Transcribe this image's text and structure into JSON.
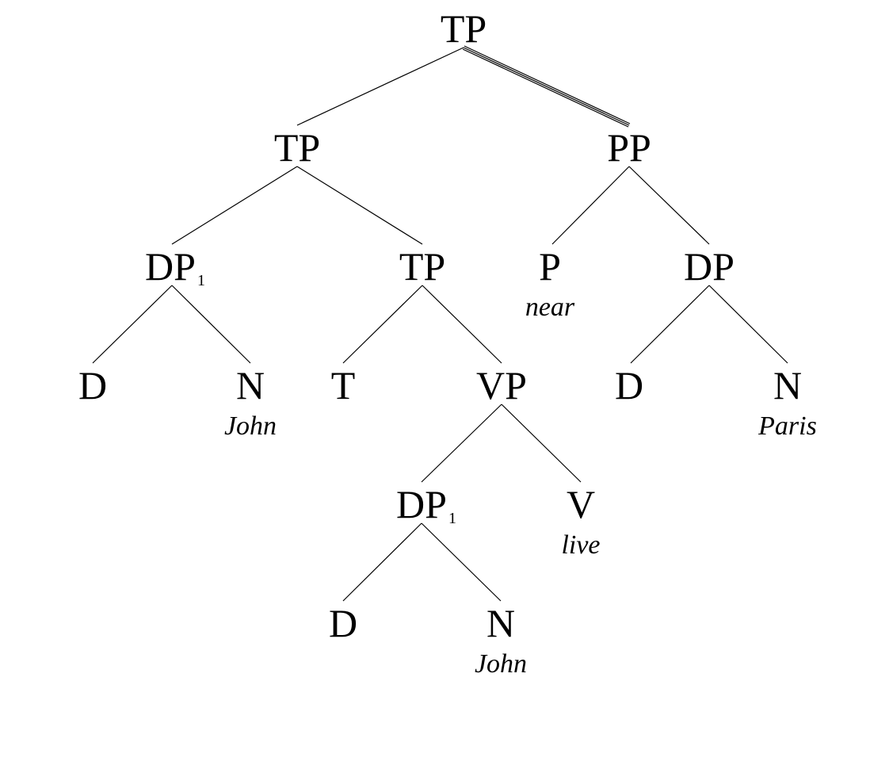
{
  "tree": {
    "nodes": {
      "root": {
        "label": "TP"
      },
      "tp_left": {
        "label": "TP"
      },
      "pp": {
        "label": "PP"
      },
      "dp1_upper": {
        "label": "DP",
        "index": "1"
      },
      "tp_inner": {
        "label": "TP"
      },
      "p": {
        "label": "P",
        "word": "near"
      },
      "dp_right": {
        "label": "DP"
      },
      "d_upper": {
        "label": "D"
      },
      "n_upper": {
        "label": "N",
        "word": "John"
      },
      "t": {
        "label": "T"
      },
      "vp": {
        "label": "VP"
      },
      "d_paris": {
        "label": "D"
      },
      "n_paris": {
        "label": "N",
        "word": "Paris"
      },
      "dp1_lower": {
        "label": "DP",
        "index": "1"
      },
      "v": {
        "label": "V",
        "word": "live"
      },
      "d_lower": {
        "label": "D"
      },
      "n_lower": {
        "label": "N",
        "word": "John"
      }
    },
    "edges": [
      {
        "from": "root",
        "to": "tp_left",
        "style": "single"
      },
      {
        "from": "root",
        "to": "pp",
        "style": "double"
      },
      {
        "from": "tp_left",
        "to": "dp1_upper",
        "style": "single"
      },
      {
        "from": "tp_left",
        "to": "tp_inner",
        "style": "single"
      },
      {
        "from": "pp",
        "to": "p",
        "style": "single"
      },
      {
        "from": "pp",
        "to": "dp_right",
        "style": "single"
      },
      {
        "from": "dp1_upper",
        "to": "d_upper",
        "style": "single"
      },
      {
        "from": "dp1_upper",
        "to": "n_upper",
        "style": "single"
      },
      {
        "from": "tp_inner",
        "to": "t",
        "style": "single"
      },
      {
        "from": "tp_inner",
        "to": "vp",
        "style": "single"
      },
      {
        "from": "dp_right",
        "to": "d_paris",
        "style": "single"
      },
      {
        "from": "dp_right",
        "to": "n_paris",
        "style": "single"
      },
      {
        "from": "vp",
        "to": "dp1_lower",
        "style": "single"
      },
      {
        "from": "vp",
        "to": "v",
        "style": "single"
      },
      {
        "from": "dp1_lower",
        "to": "d_lower",
        "style": "single"
      },
      {
        "from": "dp1_lower",
        "to": "n_lower",
        "style": "single"
      }
    ]
  },
  "colors": {
    "ink": "#000000",
    "background": "#ffffff"
  }
}
